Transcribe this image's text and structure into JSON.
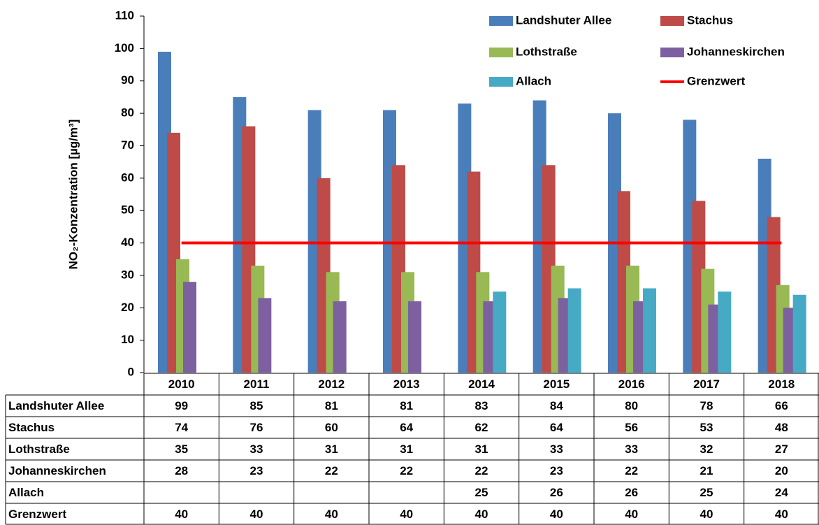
{
  "chart_data": {
    "type": "bar",
    "ylabel": "NO₂-Konzentration [µg/m³]",
    "categories": [
      "2010",
      "2011",
      "2012",
      "2013",
      "2014",
      "2015",
      "2016",
      "2017",
      "2018"
    ],
    "series": [
      {
        "name": "Landshuter Allee",
        "color": "#4a7ebb",
        "values": [
          99,
          85,
          81,
          81,
          83,
          84,
          80,
          78,
          66
        ]
      },
      {
        "name": "Stachus",
        "color": "#be4b48",
        "values": [
          74,
          76,
          60,
          64,
          62,
          64,
          56,
          53,
          48
        ]
      },
      {
        "name": "Lothstraße",
        "color": "#98b954",
        "values": [
          35,
          33,
          31,
          31,
          31,
          33,
          33,
          32,
          27
        ]
      },
      {
        "name": "Johanneskirchen",
        "color": "#7d60a0",
        "values": [
          28,
          23,
          22,
          22,
          22,
          23,
          22,
          21,
          20
        ]
      },
      {
        "name": "Allach",
        "color": "#46aac5",
        "values": [
          null,
          null,
          null,
          null,
          25,
          26,
          26,
          25,
          24
        ]
      },
      {
        "name": "Grenzwert",
        "color": "#ff0000",
        "type": "line",
        "values": [
          40,
          40,
          40,
          40,
          40,
          40,
          40,
          40,
          40
        ]
      }
    ],
    "ylim": [
      0,
      110
    ],
    "yticks": [
      0,
      10,
      20,
      30,
      40,
      50,
      60,
      70,
      80,
      90,
      100,
      110
    ],
    "legend": "top-right",
    "data_table": true
  }
}
